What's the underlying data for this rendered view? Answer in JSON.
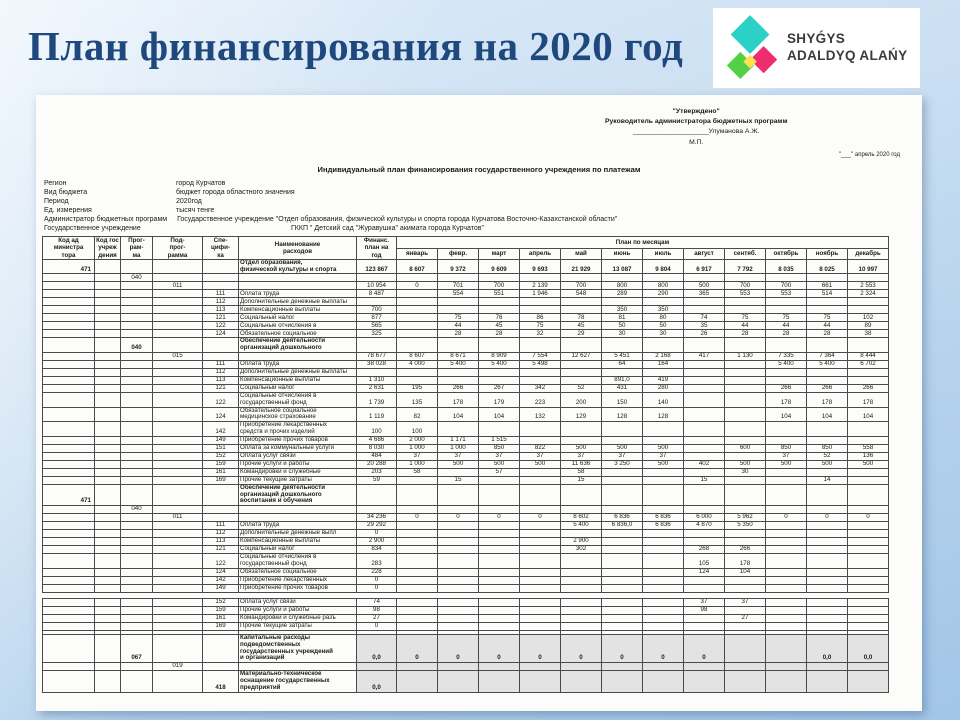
{
  "slide": {
    "title": "План финансирования на 2020 год",
    "logo": {
      "line1": "SHYǴYS",
      "line2": "ADALDYQ ALAŃY"
    }
  },
  "colors": {
    "title_navy": "#1f497d",
    "logo_teal": "#2bd0c6",
    "logo_pink": "#ee2d6e",
    "logo_green": "#52d147",
    "logo_yellow": "#ffe14d",
    "shaded_cell": "#e3e3e3"
  },
  "approval": {
    "approved": "\"Утверждено\"",
    "role": "Руководитель администратора бюджетных программ",
    "signature": "____________________Улуманова А.Ж.",
    "mp": "М.П.",
    "date_line": "\"___\" апрель 2020 год"
  },
  "doc": {
    "title": "Индивидуальный  план финансирования государственного учреждения по платежам",
    "meta": [
      {
        "label": "Регион",
        "value": "город Курчатов"
      },
      {
        "label": "Вид бюджета",
        "value": "бюджет города областного значения"
      },
      {
        "label": "Период",
        "value": "2020год"
      },
      {
        "label": "Ед. измерения",
        "value": "тысяч тенге"
      },
      {
        "label": "Администратор бюджетных программ",
        "value": "Государственное учреждение \"Отдел образования, физической культуры и спорта города Курчатова Восточно-Казахстанской области\""
      },
      {
        "label": "Государственное учреждение",
        "value": "ГККП  \" Детский сад \"Журавушка\" акимата города  Курчатов\""
      }
    ]
  },
  "table": {
    "col_headers": [
      "Код ад\nминистра\nтора",
      "Код гос\nучреж\nдения",
      "Прог-\nрам-\nма",
      "Под-\nпрог-\nрамма",
      "Спе-\nцифи-\nка",
      "Наименование\nрасходов",
      "Финанс.\nплан на\nгод"
    ],
    "plan_by_months": "План по месяцам",
    "months": [
      "январь",
      "февр.",
      "март",
      "апрель",
      "май",
      "июнь",
      "июль",
      "август",
      "сентяб.",
      "октябрь",
      "ноябрь",
      "декабрь"
    ]
  },
  "table1_rows": [
    {
      "adm": "471",
      "name": "Отдел образования,\nфизической культуры и спорта",
      "bold": true,
      "total": "123 867",
      "m": [
        "8 607",
        "9 372",
        "9 609",
        "9 693",
        "21 929",
        "13 087",
        "9 804",
        "6 917",
        "7 792",
        "8 035",
        "8 025",
        "10 997"
      ]
    },
    {
      "prog": "040"
    },
    {
      "sub": "011",
      "total": "10 954",
      "m": [
        "0",
        "701",
        "700",
        "2 139",
        "700",
        "800",
        "800",
        "500",
        "700",
        "700",
        "661",
        "2 553"
      ]
    },
    {
      "spec": "111",
      "name": "Оплата труда",
      "total": "8 487",
      "m": [
        "",
        "554",
        "551",
        "1 946",
        "548",
        "289",
        "290",
        "365",
        "553",
        "553",
        "514",
        "2 324"
      ]
    },
    {
      "spec": "112",
      "name": "Дополнительные денежные выплаты"
    },
    {
      "spec": "113",
      "name": "Компенсационные выплаты",
      "total": "700",
      "m": [
        "",
        "",
        "",
        "",
        "",
        "350",
        "350",
        "",
        "",
        "",
        "",
        ""
      ]
    },
    {
      "spec": "121",
      "name": "Социальный налог",
      "total": "877",
      "m": [
        "",
        "75",
        "76",
        "86",
        "78",
        "81",
        "80",
        "74",
        "75",
        "75",
        "75",
        "102"
      ]
    },
    {
      "spec": "122",
      "name": "Социальные отчисления в",
      "total": "565",
      "m": [
        "",
        "44",
        "45",
        "75",
        "45",
        "50",
        "50",
        "35",
        "44",
        "44",
        "44",
        "89"
      ]
    },
    {
      "spec": "124",
      "name": "Обязательное социальное",
      "total": "325",
      "m": [
        "",
        "28",
        "28",
        "32",
        "29",
        "30",
        "30",
        "26",
        "28",
        "28",
        "28",
        "38"
      ]
    },
    {
      "prog": "040",
      "name": "Обеспечение деятельности\nорганизаций дошкольного",
      "bold": true
    },
    {
      "sub": "015",
      "total": "78 677",
      "m": [
        "8 607",
        "8 671",
        "8 909",
        "7 554",
        "12 627",
        "5 451",
        "2 168",
        "417",
        "1 130",
        "7 335",
        "7 364",
        "8 444"
      ]
    },
    {
      "spec": "111",
      "name": "Оплата труда",
      "total": "38 028",
      "m": [
        "4 000",
        "5 400",
        "5 400",
        "5 498",
        "",
        "64",
        "164",
        "",
        "",
        "5 400",
        "5 400",
        "6 702"
      ]
    },
    {
      "spec": "112",
      "name": "Дополнительные денежные выплаты"
    },
    {
      "spec": "113",
      "name": "Компенсационные выплаты",
      "total": "1 310",
      "m": [
        "",
        "",
        "",
        "",
        "",
        "891,0",
        "419",
        "",
        "",
        "",
        "",
        ""
      ]
    },
    {
      "spec": "121",
      "name": "Социальный налог",
      "total": "2 631",
      "m": [
        "195",
        "266",
        "267",
        "342",
        "52",
        "431",
        "280",
        "",
        "",
        "266",
        "266",
        "266"
      ]
    },
    {
      "spec": "122",
      "name": "Социальные отчисления в\nгосударственный фонд",
      "total": "1 739",
      "m": [
        "135",
        "178",
        "179",
        "223",
        "200",
        "150",
        "140",
        "",
        "",
        "178",
        "178",
        "178"
      ]
    },
    {
      "spec": "124",
      "name": "Обязательное социальное\nмедицинское страхование",
      "total": "1 119",
      "m": [
        "82",
        "104",
        "104",
        "132",
        "129",
        "128",
        "128",
        "",
        "",
        "104",
        "104",
        "104"
      ]
    },
    {
      "spec": "142",
      "name": "Приобретение лекарственных\nсредств и прочих изделий",
      "total": "100",
      "m": [
        "100",
        "",
        "",
        "",
        "",
        "",
        "",
        "",
        "",
        "",
        "",
        ""
      ]
    },
    {
      "spec": "149",
      "name": "Приобретение прочих товаров",
      "total": "4 686",
      "m": [
        "2 000",
        "1 171",
        "1 515",
        "",
        "",
        "",
        "",
        "",
        "",
        "",
        "",
        ""
      ]
    },
    {
      "spec": "151",
      "name": "Оплата за коммунальные услуги",
      "total": "8 030",
      "m": [
        "1 000",
        "1 000",
        "850",
        "822",
        "500",
        "500",
        "500",
        "",
        "600",
        "850",
        "850",
        "558"
      ]
    },
    {
      "spec": "152",
      "name": "Оплата услуг связи",
      "total": "484",
      "m": [
        "37",
        "37",
        "37",
        "37",
        "37",
        "37",
        "37",
        "",
        "",
        "37",
        "52",
        "136"
      ]
    },
    {
      "spec": "159",
      "name": "Прочие услуги и работы",
      "total": "20 288",
      "m": [
        "1 000",
        "500",
        "500",
        "500",
        "11 636",
        "3 250",
        "500",
        "402",
        "500",
        "500",
        "500",
        "500"
      ]
    },
    {
      "spec": "161",
      "name": "Командировки и служебные",
      "total": "203",
      "m": [
        "58",
        "",
        "57",
        "",
        "58",
        "",
        "",
        "",
        "30",
        "",
        "",
        ""
      ]
    },
    {
      "spec": "169",
      "name": "Прочие текущие затраты",
      "total": "59",
      "m": [
        "",
        "15",
        "",
        "",
        "15",
        "",
        "",
        "15",
        "",
        "",
        "14",
        ""
      ]
    },
    {
      "adm": "471",
      "name": "Обеспечение деятельности\nорганизаций дошкольного\nвоспитания и обучения",
      "bold": true
    },
    {
      "prog": "040"
    },
    {
      "sub": "011",
      "total": "34 236",
      "m": [
        "0",
        "0",
        "0",
        "0",
        "8 602",
        "6 836",
        "6 836",
        "6 000",
        "5 962",
        "0",
        "0",
        "0"
      ]
    },
    {
      "spec": "111",
      "name": "Оплата труда",
      "total": "29 292",
      "m": [
        "",
        "",
        "",
        "",
        "5 400",
        "6 836,0",
        "6 836",
        "4 870",
        "5 350",
        "",
        "",
        ""
      ]
    },
    {
      "spec": "112",
      "name": "Дополнительные денежные выпл",
      "total": "0"
    },
    {
      "spec": "113",
      "name": "Компенсационные выплаты",
      "total": "2 900",
      "m": [
        "",
        "",
        "",
        "",
        "2 900",
        "",
        "",
        "",
        "",
        "",
        "",
        ""
      ]
    },
    {
      "spec": "121",
      "name": "Социальный налог",
      "total": "834",
      "m": [
        "",
        "",
        "",
        "",
        "302",
        "",
        "",
        "268",
        "266",
        "",
        "",
        ""
      ]
    },
    {
      "spec": "122",
      "name": "Социальные отчисления в\nгосударственный фонд",
      "total": "283",
      "m": [
        "",
        "",
        "",
        "",
        "",
        "",
        "",
        "105",
        "178",
        "",
        "",
        ""
      ]
    },
    {
      "spec": "124",
      "name": "Обязательное социальное",
      "total": "228",
      "m": [
        "",
        "",
        "",
        "",
        "",
        "",
        "",
        "124",
        "104",
        "",
        "",
        ""
      ]
    },
    {
      "spec": "142",
      "name": "Приобретение лекарственных",
      "total": "0"
    },
    {
      "spec": "149",
      "name": "Приобретение прочих товаров",
      "total": "0"
    }
  ],
  "table2_rows": [
    {
      "spec": "152",
      "name": "Оплата услуг связи",
      "total": "74",
      "m": [
        "",
        "",
        "",
        "",
        "",
        "",
        "",
        "37",
        "37",
        "",
        "",
        ""
      ]
    },
    {
      "spec": "159",
      "name": "Прочие услуги и работы",
      "total": "98",
      "m": [
        "",
        "",
        "",
        "",
        "",
        "",
        "",
        "98",
        "",
        "",
        "",
        ""
      ]
    },
    {
      "spec": "161",
      "name": "Командировки и служебные разъ",
      "total": "27",
      "m": [
        "",
        "",
        "",
        "",
        "",
        "",
        "",
        "",
        "27",
        "",
        "",
        ""
      ]
    },
    {
      "spec": "169",
      "name": "Прочие текущие затраты",
      "total": "0"
    },
    {
      "thin": true
    },
    {
      "prog": "067",
      "name": "Капитальные расходы\nподведомственных\nгосударственных учреждений\nи организаций",
      "bold": true,
      "total": "0,0",
      "m": [
        "0",
        "0",
        "0",
        "0",
        "0",
        "0",
        "0",
        "0",
        "",
        "",
        "0,0",
        "0,0"
      ],
      "shaded": true
    },
    {
      "sub": "019",
      "shaded": true
    },
    {
      "spec": "418",
      "name": "Материально-техническое\nоснащение государственных\nпредприятий",
      "bold": true,
      "total": "0,0",
      "shaded": true
    }
  ]
}
